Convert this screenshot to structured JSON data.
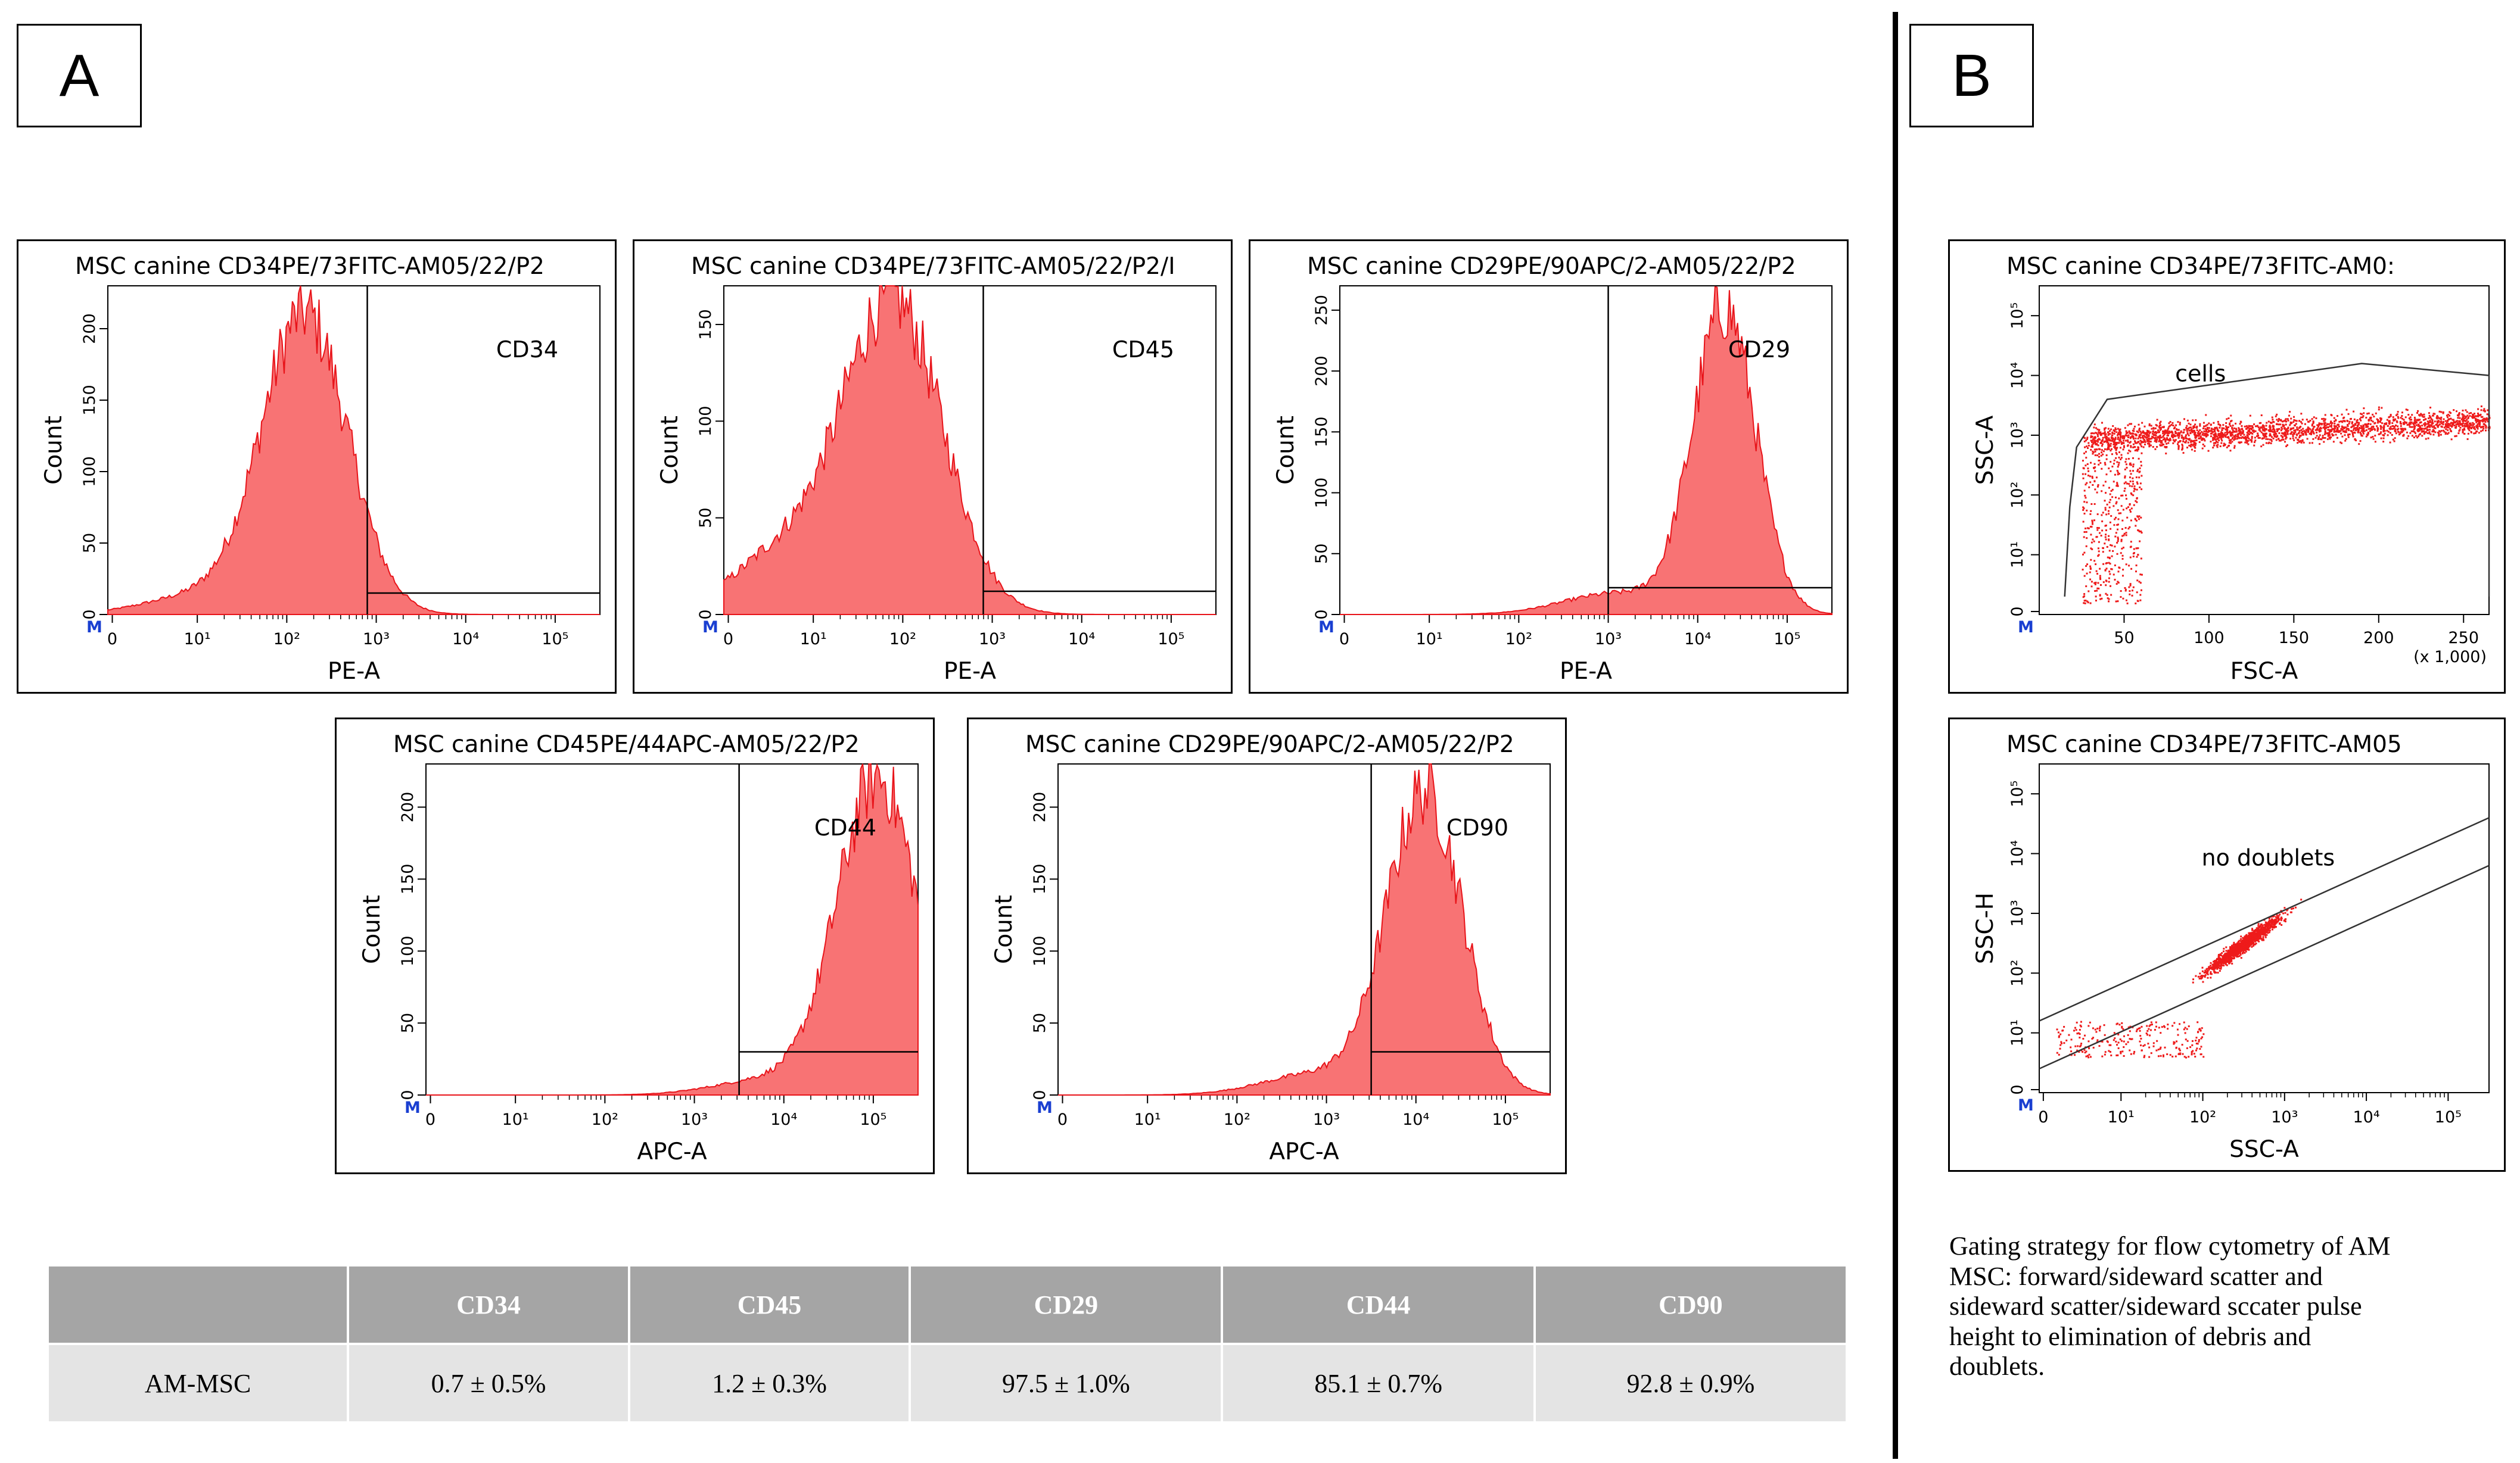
{
  "panel_a": {
    "label": "A"
  },
  "panel_b": {
    "label": "B"
  },
  "colors": {
    "fill": "#f87374",
    "edge": "#e8141a",
    "dot": "#ee1b1b",
    "header": "#a5a5a5",
    "row": "#e4e4e4"
  },
  "chart_data": [
    {
      "type": "histogram",
      "title": "MSC canine CD34PE/73FITC-AM05/22/P2",
      "xlabel": "PE-A",
      "ylabel": "Count",
      "xscale": "log",
      "xlim": [
        0,
        5.5
      ],
      "ylim": [
        0,
        230
      ],
      "yticks": [
        0,
        50,
        100,
        150,
        200
      ],
      "xticks": [
        "0",
        "10¹",
        "10²",
        "10³",
        "10⁴",
        "10⁵"
      ],
      "marker": "M",
      "gate": {
        "label": "CD34",
        "x_from": 2.9,
        "y_level": 15
      },
      "peak_log": 2.2,
      "peak_count": 210,
      "width": 0.48,
      "tail": 0.06
    },
    {
      "type": "histogram",
      "title": "MSC canine CD34PE/73FITC-AM05/22/P2/I",
      "xlabel": "PE-A",
      "ylabel": "Count",
      "xscale": "log",
      "xlim": [
        0,
        5.5
      ],
      "ylim": [
        0,
        170
      ],
      "yticks": [
        0,
        50,
        100,
        150
      ],
      "xticks": [
        "0",
        "10¹",
        "10²",
        "10³",
        "10⁴",
        "10⁵"
      ],
      "marker": "M",
      "gate": {
        "label": "CD45",
        "x_from": 2.9,
        "y_level": 12
      },
      "peak_log": 1.9,
      "peak_count": 160,
      "width": 0.55,
      "tail": 0.2
    },
    {
      "type": "histogram",
      "title": "MSC canine CD29PE/90APC/2-AM05/22/P2",
      "xlabel": "PE-A",
      "ylabel": "Count",
      "xscale": "log",
      "xlim": [
        0,
        5.5
      ],
      "ylim": [
        0,
        270
      ],
      "yticks": [
        0,
        50,
        100,
        150,
        200,
        250
      ],
      "xticks": [
        "0",
        "10¹",
        "10²",
        "10³",
        "10⁴",
        "10⁵"
      ],
      "marker": "M",
      "gate": {
        "label": "CD29",
        "x_from": 3.0,
        "y_level": 22
      },
      "peak_log": 4.3,
      "peak_count": 250,
      "width": 0.35,
      "tail": 0.07
    },
    {
      "type": "histogram",
      "title": "MSC canine CD45PE/44APC-AM05/22/P2",
      "xlabel": "APC-A",
      "ylabel": "Count",
      "xscale": "log",
      "xlim": [
        0,
        5.5
      ],
      "ylim": [
        0,
        230
      ],
      "yticks": [
        0,
        50,
        100,
        150,
        200
      ],
      "xticks": [
        "0",
        "10¹",
        "10²",
        "10³",
        "10⁴",
        "10⁵"
      ],
      "marker": "M",
      "gate": {
        "label": "CD44",
        "x_from": 3.5,
        "y_level": 30
      },
      "peak_log": 5.05,
      "peak_count": 220,
      "width": 0.45,
      "tail": 0.05
    },
    {
      "type": "histogram",
      "title": "MSC canine CD29PE/90APC/2-AM05/22/P2",
      "xlabel": "APC-A",
      "ylabel": "Count",
      "xscale": "log",
      "xlim": [
        0,
        5.5
      ],
      "ylim": [
        0,
        230
      ],
      "yticks": [
        0,
        50,
        100,
        150,
        200
      ],
      "xticks": [
        "0",
        "10¹",
        "10²",
        "10³",
        "10⁴",
        "10⁵"
      ],
      "marker": "M",
      "gate": {
        "label": "CD90",
        "x_from": 3.5,
        "y_level": 30
      },
      "peak_log": 4.1,
      "peak_count": 210,
      "width": 0.42,
      "tail": 0.07
    },
    {
      "type": "scatter",
      "title": "MSC canine CD34PE/73FITC-AM0:",
      "xlabel": "FSC-A",
      "ylabel": "SSC-A",
      "xscale": "linear",
      "yscale": "log",
      "xlim": [
        0,
        265
      ],
      "ylim": [
        0,
        5.5
      ],
      "xticks": [
        50,
        100,
        150,
        200,
        250
      ],
      "xunit": "(x 1,000)",
      "marker": "M",
      "yticks": [
        "0",
        "10¹",
        "10²",
        "10³",
        "10⁴",
        "10⁵"
      ],
      "gate": {
        "label": "cells",
        "polygon": [
          [
            15,
            0.3
          ],
          [
            18,
            1.8
          ],
          [
            22,
            2.8
          ],
          [
            40,
            3.6
          ],
          [
            190,
            4.2
          ],
          [
            265,
            4.0
          ],
          [
            265,
            0.3
          ]
        ]
      }
    },
    {
      "type": "scatter",
      "title": "MSC canine CD34PE/73FITC-AM05",
      "xlabel": "SSC-A",
      "ylabel": "SSC-H",
      "xscale": "log",
      "yscale": "log",
      "xlim": [
        0,
        5.5
      ],
      "ylim": [
        0,
        5.5
      ],
      "marker": "M",
      "xticks": [
        "0",
        "10¹",
        "10²",
        "10³",
        "10⁴",
        "10⁵"
      ],
      "yticks": [
        "0",
        "10¹",
        "10²",
        "10³",
        "10⁴",
        "10⁵"
      ],
      "gate": {
        "label": "no doublets",
        "upper": [
          [
            0,
            1.2
          ],
          [
            5.5,
            4.6
          ]
        ],
        "lower": [
          [
            0,
            0.4
          ],
          [
            5.5,
            3.8
          ]
        ]
      }
    }
  ],
  "table": {
    "columns": [
      "",
      "CD34",
      "CD45",
      "CD29",
      "CD44",
      "CD90"
    ],
    "rows": [
      [
        "AM-MSC",
        "0.7 ± 0.5%",
        "1.2 ± 0.3%",
        "97.5 ± 1.0%",
        "85.1 ± 0.7%",
        "92.8 ± 0.9%"
      ]
    ]
  },
  "caption": {
    "line1": "Gating strategy for flow cytometry of AM",
    "line2": "MSC: forward/sideward scatter and",
    "line3": "sideward scatter/sideward sccater pulse",
    "line4": "height to elimination of debris and",
    "line5": "doublets."
  }
}
